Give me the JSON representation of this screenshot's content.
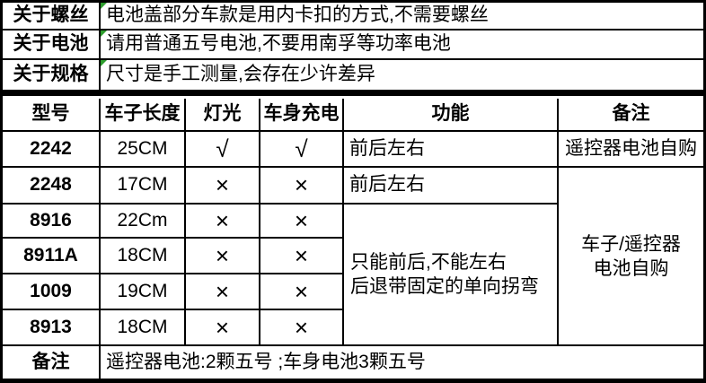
{
  "colors": {
    "background": "#ffffff",
    "border": "#000000",
    "marker_green": "#2e9e2e"
  },
  "info_rows": [
    {
      "label": "关于螺丝",
      "text": "电池盖部分车款是用内卡扣的方式,不需要螺丝"
    },
    {
      "label": "关于电池",
      "text": "请用普通五号电池,不要用南孚等功率电池"
    },
    {
      "label": "关于规格",
      "text": "尺寸是手工测量,会存在少许差异"
    }
  ],
  "table": {
    "headers": [
      "型号",
      "车子长度",
      "灯光",
      "车身充电",
      "功能",
      "备注"
    ],
    "rows": [
      {
        "model": "2242",
        "length": "25CM",
        "light": "√",
        "charge": "√",
        "function": "前后左右",
        "note": "遥控器电池自购"
      },
      {
        "model": "2248",
        "length": "17CM",
        "light": "×",
        "charge": "×",
        "function": "前后左右"
      },
      {
        "model": "8916",
        "length": "22Cm",
        "light": "×",
        "charge": "×"
      },
      {
        "model": "8911A",
        "length": "18CM",
        "light": "×",
        "charge": "×"
      },
      {
        "model": "1009",
        "length": "19CM",
        "light": "×",
        "charge": "×"
      },
      {
        "model": "8913",
        "length": "18CM",
        "light": "×",
        "charge": "×"
      }
    ],
    "merged_function_lines": [
      "只能前后,不能左右",
      "后退带固定的单向拐弯"
    ],
    "merged_note_lines": [
      "车子/遥控器",
      "电池自购"
    ]
  },
  "footer": {
    "label": "备注",
    "text": "遥控器电池:2颗五号 ;车身电池3颗五号"
  }
}
